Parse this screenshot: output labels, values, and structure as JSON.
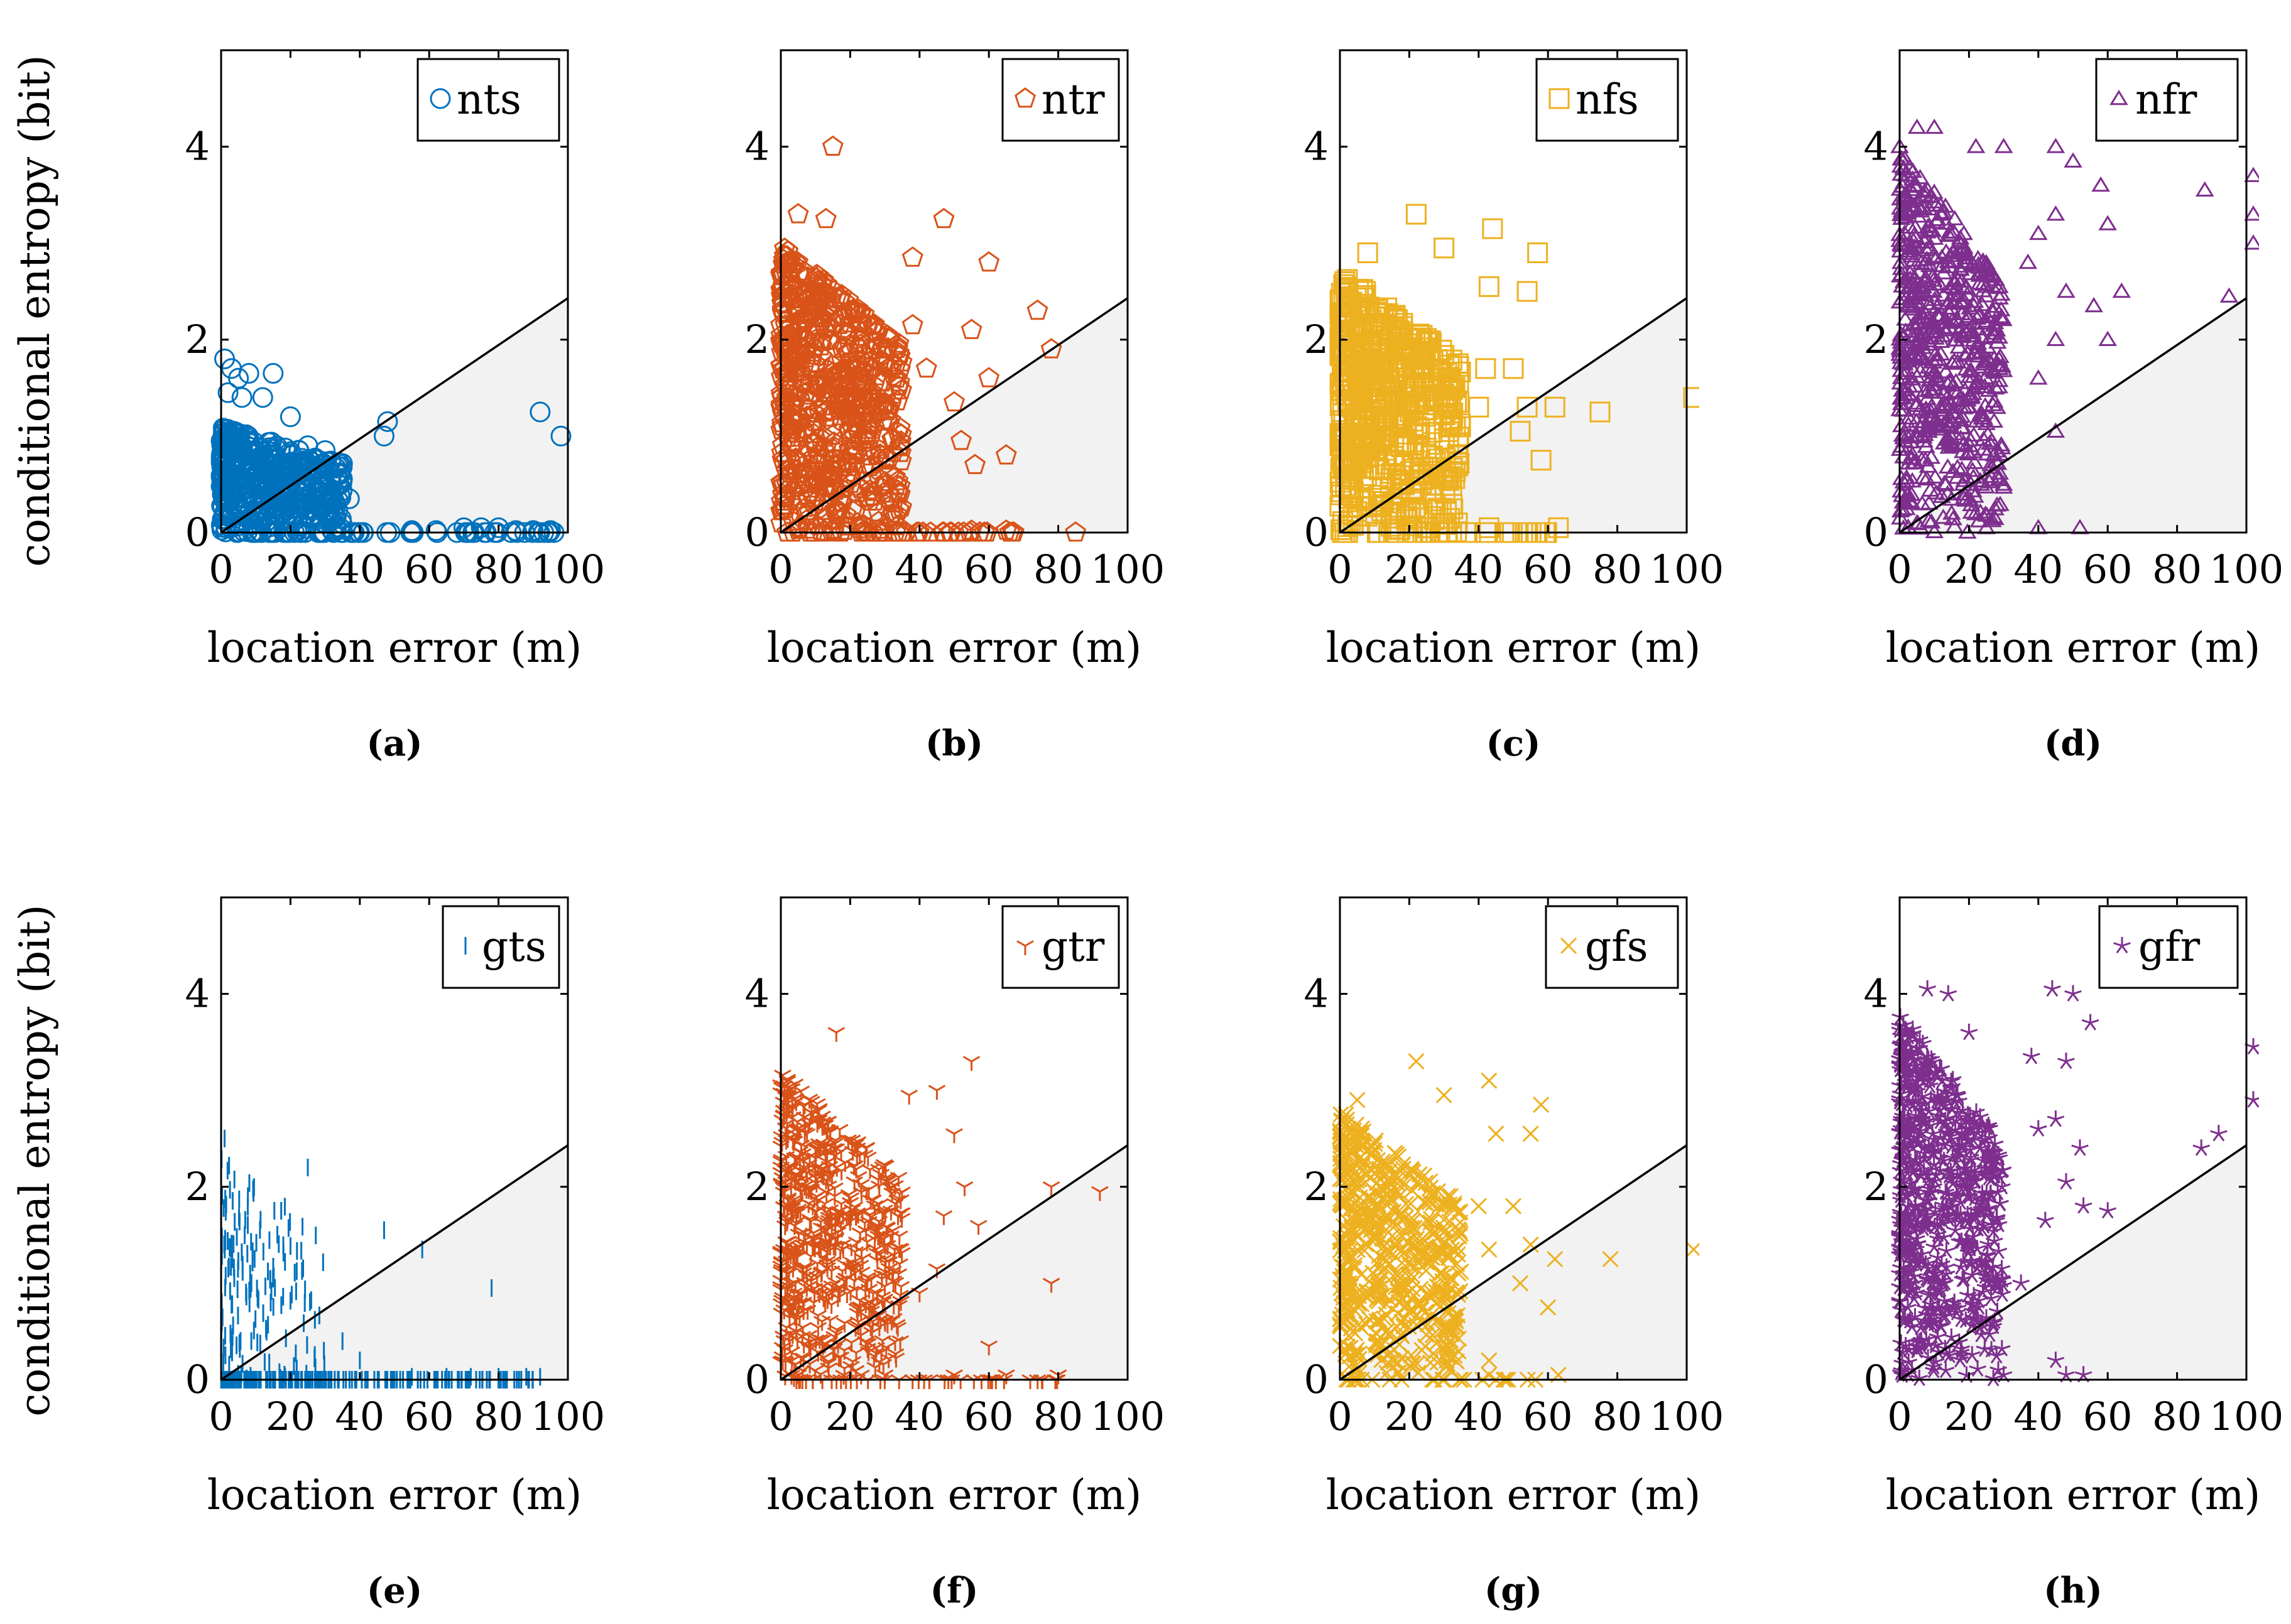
{
  "figure": {
    "ylabel": "conditional entropy (bit)",
    "xlabel": "location error (m)"
  },
  "chart_data": [
    {
      "type": "scatter",
      "panel": "(a)",
      "series_name": "nts",
      "marker": "circle",
      "color": "#0072BD",
      "xlim": [
        0,
        100
      ],
      "ylim": [
        0,
        5
      ],
      "xticks": [
        0,
        20,
        40,
        60,
        80,
        100
      ],
      "yticks": [
        0,
        2,
        4
      ],
      "threshold_line": {
        "x": [
          0,
          100
        ],
        "y": [
          0,
          2.43
        ]
      },
      "xlabel": "location error (m)",
      "ylabel": "conditional entropy (bit)",
      "highlight_points": [
        [
          1,
          1.8
        ],
        [
          3,
          1.7
        ],
        [
          5,
          1.6
        ],
        [
          8,
          1.65
        ],
        [
          15,
          1.65
        ],
        [
          2,
          1.45
        ],
        [
          6,
          1.4
        ],
        [
          12,
          1.4
        ],
        [
          20,
          1.2
        ],
        [
          25,
          0.9
        ],
        [
          30,
          0.85
        ],
        [
          37,
          0.35
        ],
        [
          47,
          1.0
        ],
        [
          48,
          1.15
        ],
        [
          92,
          1.25
        ],
        [
          96,
          0.0
        ],
        [
          98,
          1.0
        ],
        [
          55,
          0.02
        ],
        [
          62,
          0.02
        ],
        [
          70,
          0.05
        ],
        [
          75,
          0.05
        ],
        [
          80,
          0.05
        ],
        [
          85,
          0.02
        ],
        [
          90,
          0.02
        ],
        [
          95,
          0.02
        ]
      ],
      "cluster": {
        "x_max": 35,
        "y_max": 1.1,
        "n": 500,
        "zero_line_xmax": 95,
        "zero_n": 60
      }
    },
    {
      "type": "scatter",
      "panel": "(b)",
      "series_name": "ntr",
      "marker": "pentagon",
      "color": "#D95319",
      "xlim": [
        0,
        100
      ],
      "ylim": [
        0,
        5
      ],
      "xticks": [
        0,
        20,
        40,
        60,
        80,
        100
      ],
      "yticks": [
        0,
        2,
        4
      ],
      "threshold_line": {
        "x": [
          0,
          100
        ],
        "y": [
          0,
          2.43
        ]
      },
      "xlabel": "location error (m)",
      "ylabel": "conditional entropy (bit)",
      "highlight_points": [
        [
          15,
          4.0
        ],
        [
          5,
          3.3
        ],
        [
          13,
          3.25
        ],
        [
          38,
          2.85
        ],
        [
          47,
          3.25
        ],
        [
          60,
          2.8
        ],
        [
          38,
          2.15
        ],
        [
          55,
          2.1
        ],
        [
          74,
          2.3
        ],
        [
          78,
          1.9
        ],
        [
          60,
          1.6
        ],
        [
          50,
          1.35
        ],
        [
          42,
          1.7
        ],
        [
          65,
          0.8
        ],
        [
          56,
          0.7
        ],
        [
          52,
          0.95
        ],
        [
          85,
          0.0
        ],
        [
          65,
          0.02
        ],
        [
          55,
          0.02
        ]
      ],
      "cluster": {
        "x_max": 35,
        "y_max": 3.0,
        "n": 700,
        "zero_line_xmax": 70,
        "zero_n": 40
      }
    },
    {
      "type": "scatter",
      "panel": "(c)",
      "series_name": "nfs",
      "marker": "square",
      "color": "#EDB120",
      "xlim": [
        0,
        100
      ],
      "ylim": [
        0,
        5
      ],
      "xticks": [
        0,
        20,
        40,
        60,
        80,
        100
      ],
      "yticks": [
        0,
        2,
        4
      ],
      "threshold_line": {
        "x": [
          0,
          100
        ],
        "y": [
          0,
          2.43
        ]
      },
      "xlabel": "location error (m)",
      "ylabel": "conditional entropy (bit)",
      "highlight_points": [
        [
          22,
          3.3
        ],
        [
          44,
          3.15
        ],
        [
          30,
          2.95
        ],
        [
          57,
          2.9
        ],
        [
          43,
          2.55
        ],
        [
          54,
          2.5
        ],
        [
          8,
          2.9
        ],
        [
          42,
          1.7
        ],
        [
          50,
          1.7
        ],
        [
          40,
          1.3
        ],
        [
          54,
          1.3
        ],
        [
          62,
          1.3
        ],
        [
          75,
          1.25
        ],
        [
          102,
          1.4
        ],
        [
          58,
          0.75
        ],
        [
          52,
          1.05
        ],
        [
          43,
          0.05
        ],
        [
          63,
          0.05
        ]
      ],
      "cluster": {
        "x_max": 35,
        "y_max": 2.7,
        "n": 600,
        "zero_line_xmax": 60,
        "zero_n": 30
      }
    },
    {
      "type": "scatter",
      "panel": "(d)",
      "series_name": "nfr",
      "marker": "triangle",
      "color": "#7E2F8E",
      "xlim": [
        0,
        100
      ],
      "ylim": [
        0,
        5
      ],
      "xticks": [
        0,
        20,
        40,
        60,
        80,
        100
      ],
      "yticks": [
        0,
        2,
        4
      ],
      "threshold_line": {
        "x": [
          0,
          100
        ],
        "y": [
          0,
          2.43
        ]
      },
      "xlabel": "location error (m)",
      "ylabel": "conditional entropy (bit)",
      "highlight_points": [
        [
          0,
          4.0
        ],
        [
          5,
          4.2
        ],
        [
          10,
          4.2
        ],
        [
          22,
          4.0
        ],
        [
          30,
          4.0
        ],
        [
          45,
          4.0
        ],
        [
          50,
          3.85
        ],
        [
          58,
          3.6
        ],
        [
          45,
          3.3
        ],
        [
          40,
          3.1
        ],
        [
          37,
          2.8
        ],
        [
          48,
          2.5
        ],
        [
          56,
          2.35
        ],
        [
          64,
          2.5
        ],
        [
          60,
          3.2
        ],
        [
          88,
          3.55
        ],
        [
          102,
          3.7
        ],
        [
          102,
          3.3
        ],
        [
          102,
          3.0
        ],
        [
          95,
          2.45
        ],
        [
          60,
          2.0
        ],
        [
          45,
          2.0
        ],
        [
          40,
          1.6
        ],
        [
          45,
          1.05
        ],
        [
          30,
          0.5
        ],
        [
          40,
          0.05
        ],
        [
          52,
          0.05
        ],
        [
          25,
          0.05
        ],
        [
          5,
          0.1
        ],
        [
          15,
          0.2
        ]
      ],
      "cluster": {
        "x_max": 30,
        "y_max": 4.0,
        "n": 650,
        "zero_line_xmax": 0,
        "zero_n": 0
      }
    },
    {
      "type": "scatter",
      "panel": "(e)",
      "series_name": "gts",
      "marker": "vbar",
      "color": "#0072BD",
      "xlim": [
        0,
        100
      ],
      "ylim": [
        0,
        5
      ],
      "xticks": [
        0,
        20,
        40,
        60,
        80,
        100
      ],
      "yticks": [
        0,
        2,
        4
      ],
      "threshold_line": {
        "x": [
          0,
          100
        ],
        "y": [
          0,
          2.43
        ]
      },
      "xlabel": "location error (m)",
      "ylabel": "conditional entropy (bit)",
      "highlight_points": [
        [
          1,
          2.5
        ],
        [
          25,
          2.2
        ],
        [
          47,
          1.55
        ],
        [
          58,
          1.35
        ],
        [
          78,
          0.95
        ],
        [
          35,
          0.4
        ],
        [
          40,
          0.2
        ],
        [
          55,
          0.03
        ],
        [
          65,
          0.03
        ],
        [
          72,
          0.03
        ],
        [
          80,
          0.03
        ],
        [
          88,
          0.03
        ],
        [
          92,
          0.03
        ]
      ],
      "cluster": {
        "x_max": 30,
        "y_max": 2.3,
        "n": 260,
        "zero_line_xmax": 90,
        "zero_n": 120
      }
    },
    {
      "type": "scatter",
      "panel": "(f)",
      "series_name": "gtr",
      "marker": "tri_down",
      "color": "#D95319",
      "xlim": [
        0,
        100
      ],
      "ylim": [
        0,
        5
      ],
      "xticks": [
        0,
        20,
        40,
        60,
        80,
        100
      ],
      "yticks": [
        0,
        2,
        4
      ],
      "threshold_line": {
        "x": [
          0,
          100
        ],
        "y": [
          0,
          2.43
        ]
      },
      "xlabel": "location error (m)",
      "ylabel": "conditional entropy (bit)",
      "highlight_points": [
        [
          16,
          3.6
        ],
        [
          55,
          3.3
        ],
        [
          45,
          3.0
        ],
        [
          37,
          2.95
        ],
        [
          50,
          2.55
        ],
        [
          53,
          2.0
        ],
        [
          47,
          1.7
        ],
        [
          57,
          1.6
        ],
        [
          78,
          2.0
        ],
        [
          92,
          1.95
        ],
        [
          78,
          1.0
        ],
        [
          45,
          1.15
        ],
        [
          40,
          0.9
        ],
        [
          60,
          0.35
        ],
        [
          50,
          0.05
        ],
        [
          65,
          0.05
        ],
        [
          80,
          0.05
        ],
        [
          30,
          0.05
        ]
      ],
      "cluster": {
        "x_max": 35,
        "y_max": 3.2,
        "n": 650,
        "zero_line_xmax": 80,
        "zero_n": 40
      }
    },
    {
      "type": "scatter",
      "panel": "(g)",
      "series_name": "gfs",
      "marker": "x",
      "color": "#EDB120",
      "xlim": [
        0,
        100
      ],
      "ylim": [
        0,
        5
      ],
      "xticks": [
        0,
        20,
        40,
        60,
        80,
        100
      ],
      "yticks": [
        0,
        2,
        4
      ],
      "threshold_line": {
        "x": [
          0,
          100
        ],
        "y": [
          0,
          2.43
        ]
      },
      "xlabel": "location error (m)",
      "ylabel": "conditional entropy (bit)",
      "highlight_points": [
        [
          22,
          3.3
        ],
        [
          43,
          3.1
        ],
        [
          30,
          2.95
        ],
        [
          58,
          2.85
        ],
        [
          45,
          2.55
        ],
        [
          55,
          2.55
        ],
        [
          5,
          2.9
        ],
        [
          40,
          1.8
        ],
        [
          50,
          1.8
        ],
        [
          43,
          1.35
        ],
        [
          55,
          1.4
        ],
        [
          62,
          1.25
        ],
        [
          78,
          1.25
        ],
        [
          102,
          1.35
        ],
        [
          60,
          0.75
        ],
        [
          52,
          1.0
        ],
        [
          43,
          0.2
        ],
        [
          43,
          0.05
        ],
        [
          63,
          0.05
        ]
      ],
      "cluster": {
        "x_max": 35,
        "y_max": 2.8,
        "n": 600,
        "zero_line_xmax": 60,
        "zero_n": 25
      }
    },
    {
      "type": "scatter",
      "panel": "(h)",
      "series_name": "gfr",
      "marker": "star",
      "color": "#7E2F8E",
      "xlim": [
        0,
        100
      ],
      "ylim": [
        0,
        5
      ],
      "xticks": [
        0,
        20,
        40,
        60,
        80,
        100
      ],
      "yticks": [
        0,
        2,
        4
      ],
      "threshold_line": {
        "x": [
          0,
          100
        ],
        "y": [
          0,
          2.43
        ]
      },
      "xlabel": "location error (m)",
      "ylabel": "conditional entropy (bit)",
      "highlight_points": [
        [
          8,
          4.05
        ],
        [
          14,
          4.0
        ],
        [
          20,
          3.6
        ],
        [
          38,
          3.35
        ],
        [
          44,
          4.05
        ],
        [
          50,
          4.0
        ],
        [
          55,
          3.7
        ],
        [
          48,
          3.3
        ],
        [
          40,
          2.6
        ],
        [
          45,
          2.7
        ],
        [
          52,
          2.4
        ],
        [
          48,
          2.05
        ],
        [
          53,
          1.8
        ],
        [
          60,
          1.75
        ],
        [
          42,
          1.65
        ],
        [
          35,
          1.0
        ],
        [
          102,
          3.45
        ],
        [
          102,
          2.9
        ],
        [
          92,
          2.55
        ],
        [
          87,
          2.4
        ],
        [
          45,
          0.2
        ],
        [
          48,
          0.05
        ],
        [
          53,
          0.05
        ],
        [
          30,
          0.05
        ]
      ],
      "cluster": {
        "x_max": 30,
        "y_max": 3.8,
        "n": 650,
        "zero_line_xmax": 0,
        "zero_n": 0
      }
    }
  ]
}
